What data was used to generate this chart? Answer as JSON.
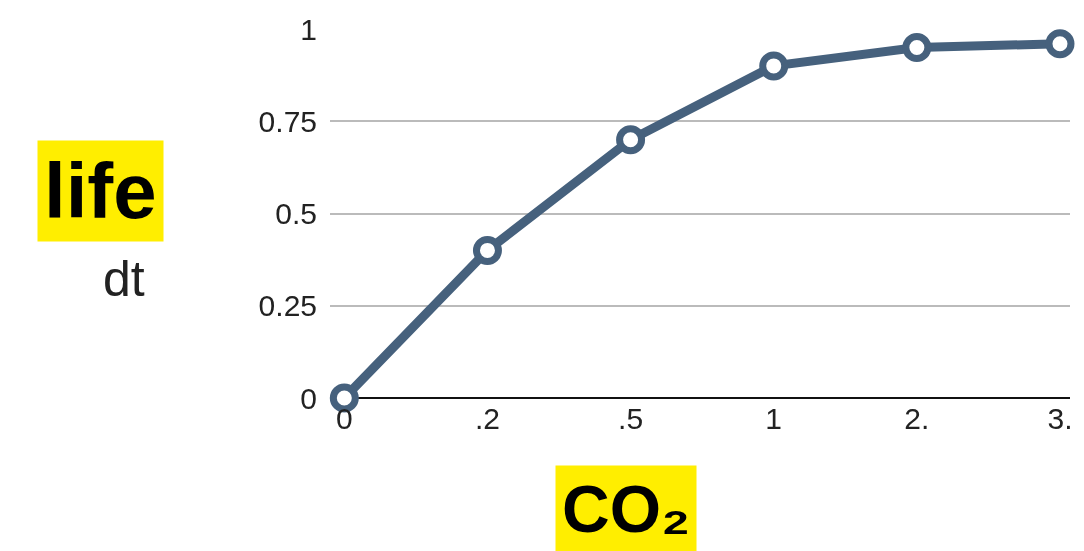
{
  "chart_data": {
    "type": "line",
    "categories": [
      "0",
      ".2",
      ".5",
      "1",
      "2.",
      "3."
    ],
    "series": [
      {
        "color": "#46617d",
        "values": [
          0,
          0.4,
          0.7,
          0.9,
          0.95,
          0.96
        ]
      }
    ],
    "ylabel": "life",
    "xlabel": "CO₂",
    "annotations": [
      "dt"
    ],
    "ylim": [
      0,
      1
    ],
    "yticks": [
      0,
      0.25,
      0.5,
      0.75,
      1
    ],
    "grid": "y",
    "marker": "circle",
    "line_style": "solid"
  }
}
